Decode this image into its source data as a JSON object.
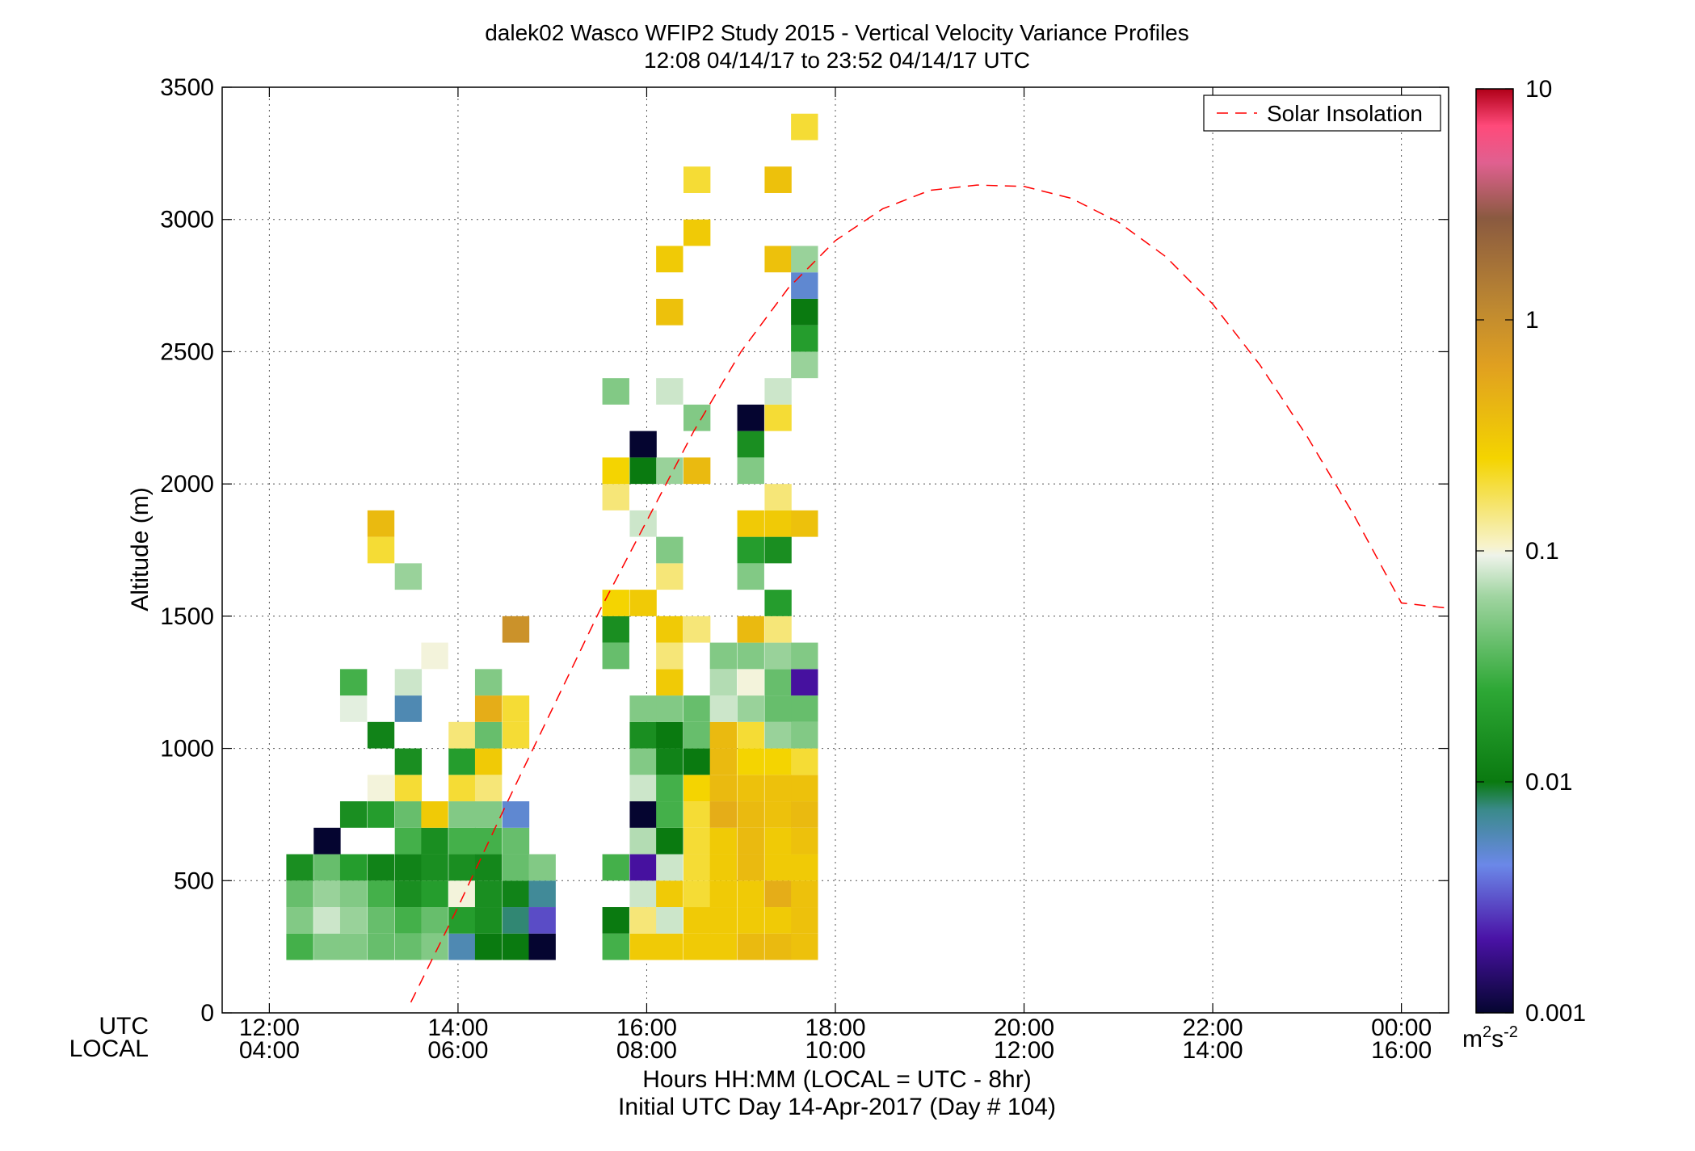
{
  "chart_data": {
    "type": "heatmap",
    "title": "dalek02 Wasco WFIP2 Study 2015 - Vertical Velocity Variance Profiles",
    "subtitle": "12:08 04/14/17 to 23:52 04/14/17  UTC",
    "ylabel": "Altitude (m)",
    "xlabel_line1": "Hours HH:MM  (LOCAL = UTC - 8hr)",
    "xlabel_line2": "Initial UTC Day 14-Apr-2017 (Day # 104)",
    "row_label_utc": "UTC",
    "row_label_local": "LOCAL",
    "xlim_hours": [
      11.5,
      24.5
    ],
    "ylim": [
      0,
      3500
    ],
    "yticks": [
      0,
      500,
      1000,
      1500,
      2000,
      2500,
      3000,
      3500
    ],
    "xticks_hours": [
      12,
      14,
      16,
      18,
      20,
      22,
      24
    ],
    "xtick_labels_utc": [
      "12:00",
      "14:00",
      "16:00",
      "18:00",
      "20:00",
      "22:00",
      "00:00"
    ],
    "xtick_labels_local": [
      "04:00",
      "06:00",
      "08:00",
      "10:00",
      "12:00",
      "14:00",
      "16:00"
    ],
    "grid": true,
    "legend": {
      "position": "top-right",
      "entries": [
        "Solar Insolation"
      ],
      "line_color": "#ff0000"
    },
    "colorbar": {
      "scale": "log",
      "range": [
        0.001,
        10
      ],
      "tick_values": [
        0.001,
        0.01,
        0.1,
        1,
        10
      ],
      "tick_labels": [
        "0.001",
        "0.01",
        "0.1",
        "1",
        "10"
      ],
      "unit_base": "m",
      "unit_sup1": "2",
      "unit_mid": "s",
      "unit_sup2": "-2"
    },
    "solar_insolation": {
      "x_hours": [
        13.5,
        14.0,
        14.5,
        15.0,
        15.5,
        16.0,
        16.5,
        17.0,
        17.5,
        18.0,
        18.5,
        19.0,
        19.5,
        20.0,
        20.5,
        21.0,
        21.5,
        22.0,
        22.5,
        23.0,
        23.5,
        24.0,
        24.5
      ],
      "y_altitude": [
        40,
        400,
        780,
        1150,
        1520,
        1860,
        2200,
        2500,
        2740,
        2920,
        3040,
        3110,
        3130,
        3125,
        3080,
        2990,
        2860,
        2680,
        2450,
        2180,
        1880,
        1550,
        1530
      ]
    },
    "cells": {
      "columns_start_hour": 12.18,
      "column_width_hours": 0.2857,
      "row_height_m": 100,
      "note_columns": "each column is a profile; values are variance in m^2 s^-2; null = no data",
      "profiles": [
        {
          "t": 12.18,
          "z": [
            200,
            300,
            400,
            500
          ],
          "v": [
            0.03,
            0.05,
            0.04,
            0.015
          ]
        },
        {
          "t": 12.47,
          "z": [
            200,
            300,
            400,
            500,
            600
          ],
          "v": [
            0.05,
            0.08,
            0.06,
            0.04,
            0.001
          ]
        },
        {
          "t": 12.75,
          "z": [
            200,
            300,
            400,
            500,
            700,
            1100,
            1200
          ],
          "v": [
            0.05,
            0.06,
            0.05,
            0.02,
            0.015,
            0.09,
            0.03
          ]
        },
        {
          "t": 13.04,
          "z": [
            200,
            300,
            400,
            500,
            700,
            800,
            1000,
            1700,
            1800
          ],
          "v": [
            0.04,
            0.04,
            0.03,
            0.012,
            0.02,
            0.1,
            0.012,
            0.2,
            0.4
          ]
        },
        {
          "t": 13.33,
          "z": [
            200,
            300,
            400,
            500,
            600,
            700,
            800,
            900,
            1100,
            1200,
            1600
          ],
          "v": [
            0.04,
            0.03,
            0.015,
            0.012,
            0.03,
            0.04,
            0.2,
            0.015,
            0.006,
            0.08,
            0.06
          ]
        },
        {
          "t": 13.61,
          "z": [
            200,
            300,
            400,
            500,
            600,
            700,
            1300
          ],
          "v": [
            0.05,
            0.04,
            0.02,
            0.015,
            0.015,
            0.3,
            0.1
          ]
        },
        {
          "t": 13.9,
          "z": [
            200,
            300,
            400,
            500,
            600,
            700,
            800,
            900,
            1000
          ],
          "v": [
            0.006,
            0.02,
            0.1,
            0.015,
            0.03,
            0.05,
            0.2,
            0.02,
            0.15
          ]
        },
        {
          "t": 14.18,
          "z": [
            200,
            300,
            400,
            500,
            600,
            700,
            800,
            900,
            1000,
            1100,
            1200
          ],
          "v": [
            0.01,
            0.015,
            0.015,
            0.013,
            0.03,
            0.05,
            0.15,
            0.3,
            0.04,
            0.5,
            0.05
          ]
        },
        {
          "t": 14.47,
          "z": [
            200,
            300,
            400,
            500,
            600,
            700,
            1000,
            1100,
            1400
          ],
          "v": [
            0.01,
            0.008,
            0.012,
            0.04,
            0.04,
            0.005,
            0.2,
            0.2,
            0.9
          ]
        },
        {
          "t": 14.75,
          "z": [
            200,
            300,
            400,
            500
          ],
          "v": [
            0.001,
            0.003,
            0.007,
            0.05
          ]
        },
        {
          "t": 15.53,
          "z": [
            200,
            300,
            500,
            1300,
            1400,
            1500,
            1900,
            2000,
            2300
          ],
          "v": [
            0.03,
            0.01,
            0.03,
            0.04,
            0.015,
            0.25,
            0.15,
            0.25,
            0.05
          ]
        },
        {
          "t": 15.82,
          "z": [
            200,
            300,
            400,
            500,
            600,
            700,
            800,
            900,
            1000,
            1100,
            1500,
            1800,
            2000,
            2100
          ],
          "v": [
            0.3,
            0.15,
            0.08,
            0.002,
            0.07,
            0.001,
            0.08,
            0.05,
            0.015,
            0.05,
            0.3,
            0.08,
            0.01,
            0.001
          ]
        },
        {
          "t": 16.1,
          "z": [
            200,
            300,
            400,
            500,
            600,
            700,
            800,
            900,
            1000,
            1100,
            1200,
            1300,
            1400,
            1600,
            1700,
            2000,
            2300,
            2600,
            2800
          ],
          "v": [
            0.3,
            0.08,
            0.3,
            0.08,
            0.01,
            0.03,
            0.03,
            0.012,
            0.01,
            0.05,
            0.3,
            0.15,
            0.3,
            0.15,
            0.05,
            0.06,
            0.08,
            0.35,
            0.3
          ]
        },
        {
          "t": 16.39,
          "z": [
            200,
            300,
            400,
            500,
            600,
            700,
            800,
            900,
            1000,
            1100,
            1400,
            2000,
            2200,
            2900,
            3100
          ],
          "v": [
            0.3,
            0.3,
            0.2,
            0.2,
            0.2,
            0.2,
            0.25,
            0.01,
            0.04,
            0.04,
            0.15,
            0.4,
            0.05,
            0.3,
            0.2
          ]
        },
        {
          "t": 16.67,
          "z": [
            200,
            300,
            400,
            500,
            600,
            700,
            800,
            900,
            1000,
            1100,
            1200,
            1300
          ],
          "v": [
            0.3,
            0.3,
            0.3,
            0.3,
            0.3,
            0.5,
            0.4,
            0.4,
            0.4,
            0.08,
            0.07,
            0.05
          ]
        },
        {
          "t": 16.96,
          "z": [
            200,
            300,
            400,
            500,
            600,
            700,
            800,
            900,
            1000,
            1100,
            1200,
            1300,
            1400,
            1600,
            1700,
            1800,
            2000,
            2100,
            2200
          ],
          "v": [
            0.4,
            0.3,
            0.3,
            0.4,
            0.4,
            0.4,
            0.35,
            0.25,
            0.2,
            0.06,
            0.1,
            0.05,
            0.4,
            0.05,
            0.02,
            0.3,
            0.05,
            0.015,
            0.001
          ]
        },
        {
          "t": 17.25,
          "z": [
            200,
            300,
            400,
            500,
            600,
            700,
            800,
            900,
            1000,
            1100,
            1200,
            1300,
            1400,
            1500,
            1700,
            1800,
            1900,
            2200,
            2300,
            2800,
            3100
          ],
          "v": [
            0.4,
            0.3,
            0.5,
            0.3,
            0.3,
            0.35,
            0.35,
            0.25,
            0.06,
            0.04,
            0.04,
            0.06,
            0.15,
            0.02,
            0.015,
            0.3,
            0.15,
            0.2,
            0.08,
            0.35,
            0.35
          ]
        },
        {
          "t": 17.53,
          "z": [
            200,
            300,
            400,
            500,
            600,
            700,
            800,
            900,
            1000,
            1100,
            1200,
            1300,
            1800,
            2400,
            2500,
            2600,
            2700,
            2800,
            3300
          ],
          "v": [
            0.35,
            0.35,
            0.35,
            0.3,
            0.35,
            0.4,
            0.35,
            0.2,
            0.05,
            0.04,
            0.002,
            0.05,
            0.35,
            0.06,
            0.02,
            0.01,
            0.005,
            0.06,
            0.2
          ]
        }
      ]
    }
  }
}
